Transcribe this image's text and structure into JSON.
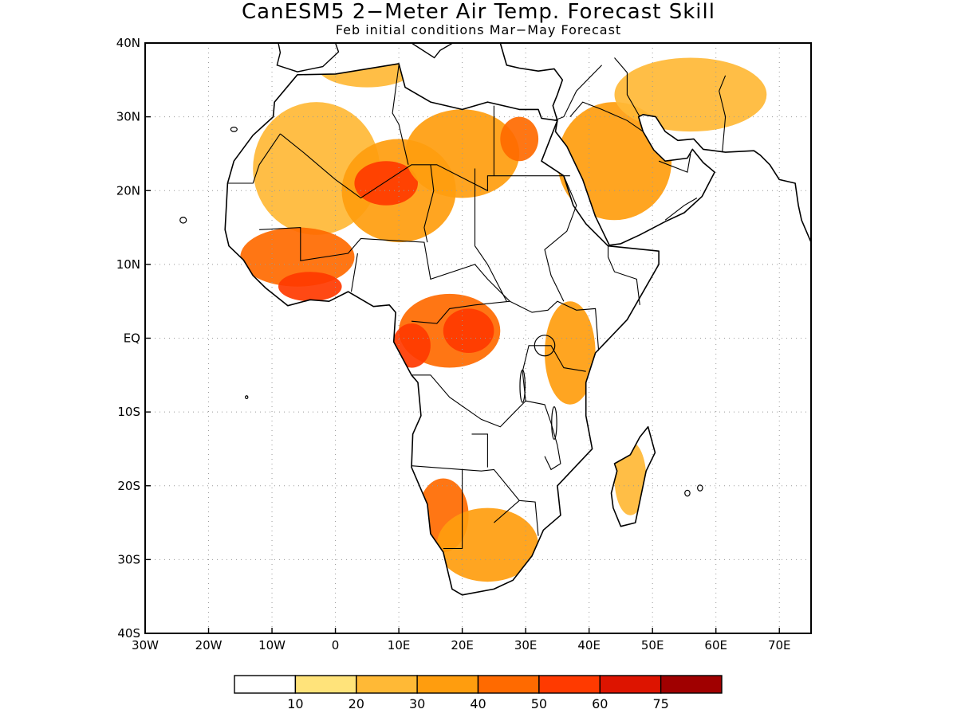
{
  "title": "CanESM5 2−Meter Air Temp. Forecast Skill",
  "subtitle": "Feb initial conditions  Mar−May Forecast",
  "map": {
    "lon_range": [
      -30,
      75
    ],
    "lat_range": [
      -40,
      40
    ],
    "lon_ticks": [
      {
        "value": -30,
        "label": "30W"
      },
      {
        "value": -20,
        "label": "20W"
      },
      {
        "value": -10,
        "label": "10W"
      },
      {
        "value": 0,
        "label": "0"
      },
      {
        "value": 10,
        "label": "10E"
      },
      {
        "value": 20,
        "label": "20E"
      },
      {
        "value": 30,
        "label": "30E"
      },
      {
        "value": 40,
        "label": "40E"
      },
      {
        "value": 50,
        "label": "50E"
      },
      {
        "value": 60,
        "label": "60E"
      },
      {
        "value": 70,
        "label": "70E"
      }
    ],
    "lat_ticks": [
      {
        "value": 40,
        "label": "40N"
      },
      {
        "value": 30,
        "label": "30N"
      },
      {
        "value": 20,
        "label": "20N"
      },
      {
        "value": 10,
        "label": "10N"
      },
      {
        "value": 0,
        "label": "EQ"
      },
      {
        "value": -10,
        "label": "10S"
      },
      {
        "value": -20,
        "label": "20S"
      },
      {
        "value": -30,
        "label": "30S"
      },
      {
        "value": -40,
        "label": "40S"
      }
    ],
    "grid": true
  },
  "colorbar": {
    "colors": [
      "#ffffff",
      "#ffe37a",
      "#ffb936",
      "#ff9d0e",
      "#ff6a00",
      "#ff3a00",
      "#dd1400",
      "#a00000"
    ],
    "labels": [
      "10",
      "20",
      "30",
      "40",
      "50",
      "60",
      "75"
    ]
  },
  "skill_regions": [
    {
      "name": "sahara-west",
      "level": 2,
      "lon": -3,
      "lat": 23,
      "rlon": 10,
      "rlat": 9
    },
    {
      "name": "sahara-central",
      "level": 3,
      "lon": 10,
      "lat": 20,
      "rlon": 9,
      "rlat": 7
    },
    {
      "name": "niger-core",
      "level": 5,
      "lon": 8,
      "lat": 21,
      "rlon": 5,
      "rlat": 3
    },
    {
      "name": "libya-egypt",
      "level": 3,
      "lon": 20,
      "lat": 25,
      "rlon": 9,
      "rlat": 6
    },
    {
      "name": "egypt-east",
      "level": 4,
      "lon": 29,
      "lat": 27,
      "rlon": 3,
      "rlat": 3
    },
    {
      "name": "west-africa",
      "level": 4,
      "lon": -6,
      "lat": 11,
      "rlon": 9,
      "rlat": 4
    },
    {
      "name": "guinea-coast",
      "level": 5,
      "lon": -4,
      "lat": 7,
      "rlon": 5,
      "rlat": 2
    },
    {
      "name": "central-africa",
      "level": 4,
      "lon": 18,
      "lat": 1,
      "rlon": 8,
      "rlat": 5
    },
    {
      "name": "congo-core",
      "level": 5,
      "lon": 21,
      "lat": 1,
      "rlon": 4,
      "rlat": 3
    },
    {
      "name": "gabon",
      "level": 5,
      "lon": 12,
      "lat": -1,
      "rlon": 3,
      "rlat": 3
    },
    {
      "name": "east-africa",
      "level": 3,
      "lon": 37,
      "lat": -2,
      "rlon": 4,
      "rlat": 7
    },
    {
      "name": "arabia",
      "level": 3,
      "lon": 44,
      "lat": 24,
      "rlon": 9,
      "rlat": 8
    },
    {
      "name": "iran",
      "level": 2,
      "lon": 56,
      "lat": 33,
      "rlon": 12,
      "rlat": 5
    },
    {
      "name": "mediterranean",
      "level": 2,
      "lon": 5,
      "lat": 37,
      "rlon": 8,
      "rlat": 3
    },
    {
      "name": "namibia",
      "level": 4,
      "lon": 17,
      "lat": -24,
      "rlon": 4,
      "rlat": 5
    },
    {
      "name": "south-africa",
      "level": 3,
      "lon": 24,
      "lat": -28,
      "rlon": 8,
      "rlat": 5
    },
    {
      "name": "madagascar",
      "level": 2,
      "lon": 46.5,
      "lat": -19,
      "rlon": 2.5,
      "rlat": 5
    }
  ]
}
